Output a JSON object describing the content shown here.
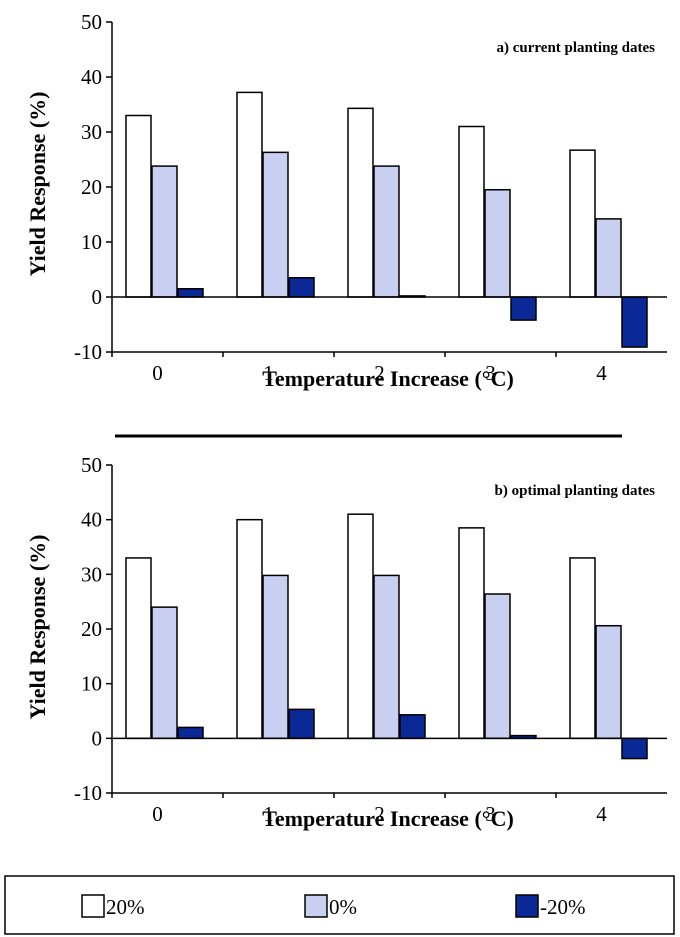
{
  "chart_data": [
    {
      "type": "bar",
      "panel_label": "a) current planting dates",
      "categories": [
        "0",
        "1",
        "2",
        "3",
        "4"
      ],
      "series": [
        {
          "name": "20%",
          "values": [
            33,
            37.2,
            34.3,
            31,
            26.7
          ],
          "color": "#ffffff"
        },
        {
          "name": "0%",
          "values": [
            23.8,
            26.3,
            23.8,
            19.5,
            14.2
          ],
          "color": "#c8cff0"
        },
        {
          "name": "-20%",
          "values": [
            1.5,
            3.5,
            0.2,
            -4.2,
            -9.1
          ],
          "color": "#0a2896"
        }
      ],
      "ylim": [
        -10,
        50
      ],
      "yticks": [
        "-10",
        "0",
        "10",
        "20",
        "30",
        "40",
        "50"
      ],
      "xlabel": "Temperature Increase (°C)",
      "ylabel": "Yield Response (%)"
    },
    {
      "type": "bar",
      "panel_label": "b) optimal planting dates",
      "categories": [
        "0",
        "1",
        "2",
        "3",
        "4"
      ],
      "series": [
        {
          "name": "20%",
          "values": [
            33,
            40,
            41,
            38.5,
            33
          ],
          "color": "#ffffff"
        },
        {
          "name": "0%",
          "values": [
            24,
            29.8,
            29.8,
            26.4,
            20.6
          ],
          "color": "#c8cff0"
        },
        {
          "name": "-20%",
          "values": [
            2,
            5.3,
            4.3,
            0.5,
            -3.7
          ],
          "color": "#0a2896"
        }
      ],
      "ylim": [
        -10,
        50
      ],
      "yticks": [
        "-10",
        "0",
        "10",
        "20",
        "30",
        "40",
        "50"
      ],
      "xlabel": "Temperature Increase (°C)",
      "ylabel": "Yield Response (%)"
    }
  ],
  "legend": {
    "items": [
      {
        "label": "20%",
        "color": "#ffffff"
      },
      {
        "label": "0%",
        "color": "#c8cff0"
      },
      {
        "label": "-20%",
        "color": "#0a2896"
      }
    ]
  }
}
